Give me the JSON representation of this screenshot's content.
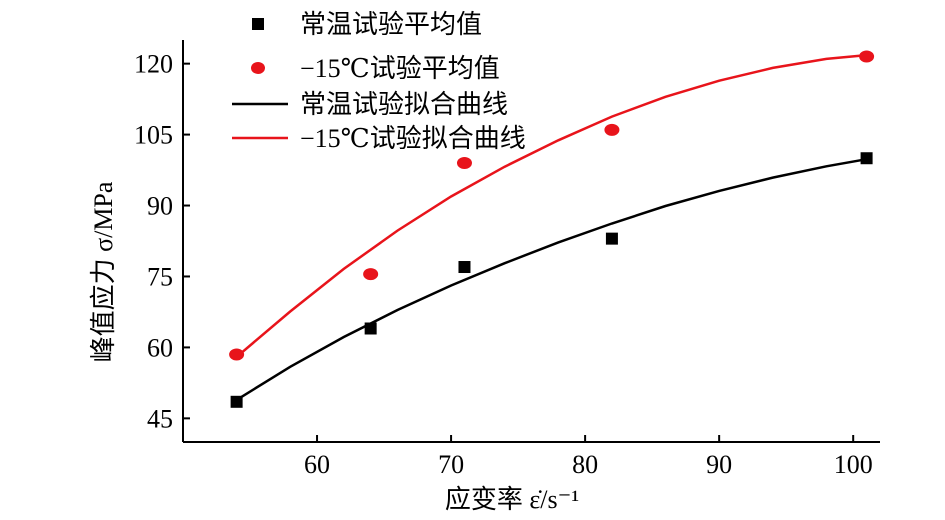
{
  "chart_data": {
    "type": "scatter",
    "xlabel": "应变率 ε̇/s⁻¹",
    "ylabel": "峰值应力 σ/MPa",
    "xlim": [
      50,
      102
    ],
    "ylim": [
      40,
      125
    ],
    "x_ticks": [
      "60",
      "70",
      "80",
      "90",
      "100"
    ],
    "y_ticks": [
      "45",
      "60",
      "75",
      "90",
      "105",
      "120"
    ],
    "x_tick_values": [
      60,
      70,
      80,
      90,
      100
    ],
    "y_tick_values": [
      45,
      60,
      75,
      90,
      105,
      120
    ],
    "grid": false,
    "legend_position": "top-left",
    "series": [
      {
        "name": "常温试验平均值",
        "kind": "points",
        "marker": "square",
        "color": "#000000",
        "x": [
          54,
          64,
          71,
          82,
          101
        ],
        "y": [
          48.5,
          64,
          77,
          83,
          100
        ]
      },
      {
        "name": "−15℃试验平均值",
        "kind": "points",
        "marker": "circle",
        "color": "#e8141b",
        "x": [
          54,
          64,
          71,
          82,
          101
        ],
        "y": [
          58.5,
          75.5,
          99,
          106,
          121.5
        ]
      },
      {
        "name": "常温试验拟合曲线",
        "kind": "line",
        "color": "#000000",
        "x": [
          54,
          58,
          62,
          66,
          70,
          74,
          78,
          82,
          86,
          90,
          94,
          98,
          101
        ],
        "y": [
          48.9,
          55.9,
          62.2,
          67.9,
          73.1,
          77.8,
          82.2,
          86.2,
          89.9,
          93.1,
          95.9,
          98.3,
          99.8
        ]
      },
      {
        "name": "−15℃试验拟合曲线",
        "kind": "line",
        "color": "#e8141b",
        "x": [
          54,
          58,
          62,
          66,
          70,
          74,
          78,
          82,
          86,
          90,
          94,
          98,
          101
        ],
        "y": [
          58.0,
          67.6,
          76.6,
          84.7,
          91.9,
          98.2,
          103.8,
          108.8,
          113.0,
          116.4,
          119.1,
          121.0,
          121.8
        ]
      }
    ]
  }
}
